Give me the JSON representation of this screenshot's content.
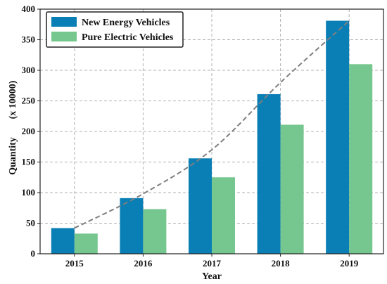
{
  "chart_data": {
    "type": "bar",
    "categories": [
      "2015",
      "2016",
      "2017",
      "2018",
      "2019"
    ],
    "series": [
      {
        "name": "New Energy Vehicles",
        "values": [
          42,
          91,
          156,
          261,
          381
        ],
        "color": "#0a7fb5"
      },
      {
        "name": "Pure Electric Vehicles",
        "values": [
          33,
          73,
          125,
          211,
          310
        ],
        "color": "#76c68f"
      }
    ],
    "trend": {
      "values": [
        42,
        98,
        170,
        280,
        381
      ],
      "color": "#7f7f7f",
      "style": "dashed"
    },
    "title": "",
    "xlabel": "Year",
    "ylabel": "Quantity",
    "ylabel_unit": "(x 10000)",
    "ylim": [
      0,
      400
    ],
    "yticks": [
      0,
      50,
      100,
      150,
      200,
      250,
      300,
      350,
      400
    ],
    "grid": true,
    "legend_position": "top-left"
  }
}
